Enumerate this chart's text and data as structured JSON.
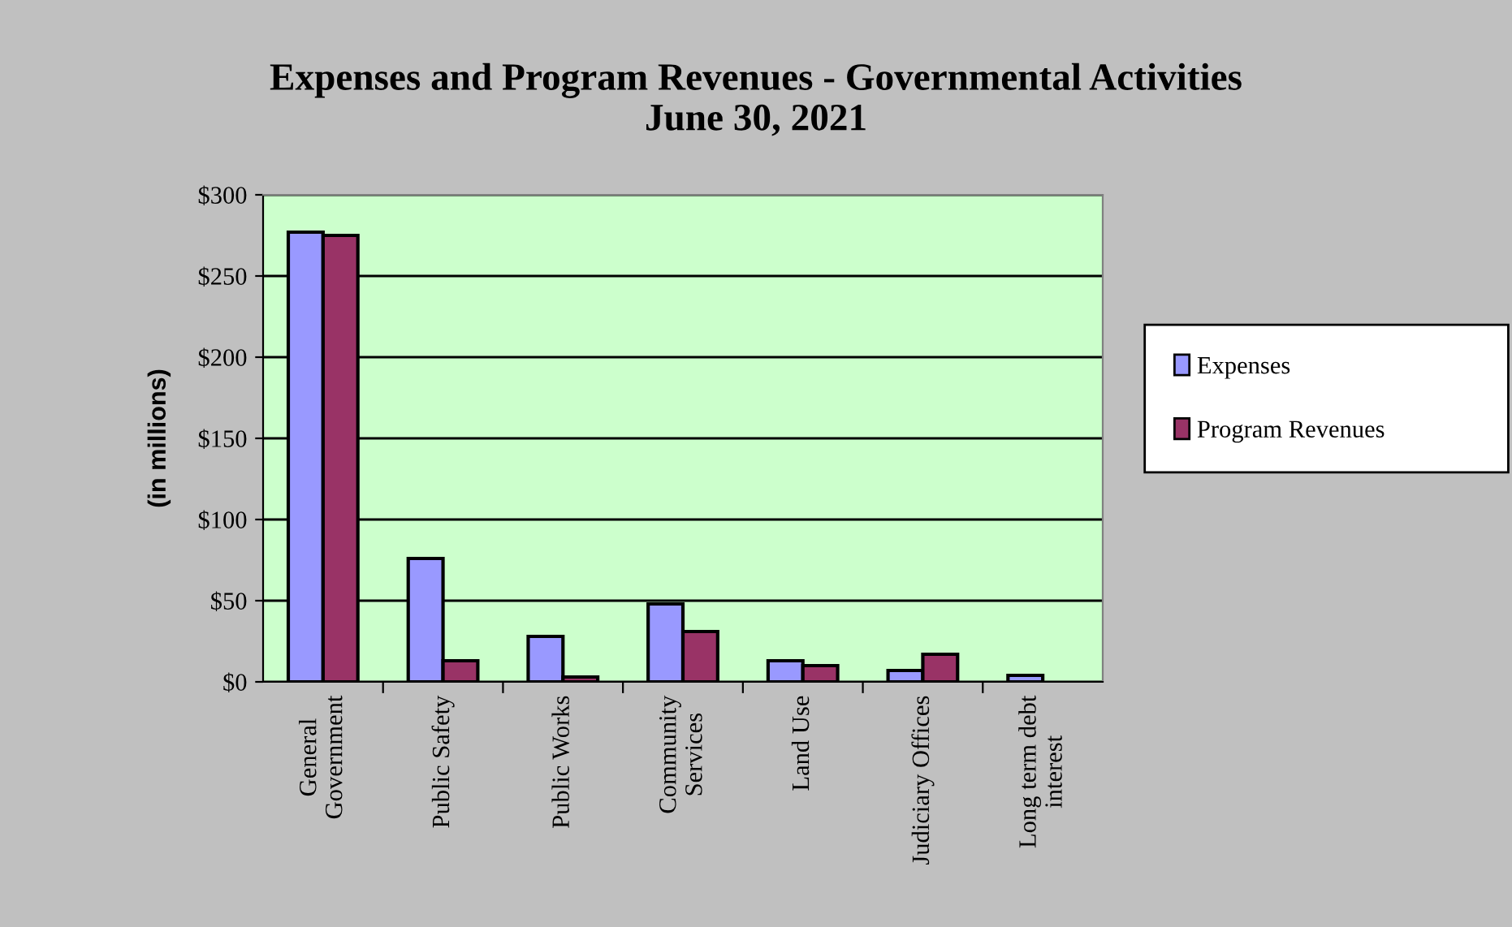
{
  "chart_data": {
    "type": "bar",
    "title": "Expenses and Program Revenues - Governmental Activities\nJune 30, 2021",
    "ylabel": "(in millions)",
    "categories": [
      "General\nGovernment",
      "Public Safety",
      "Public Works",
      "Community\nServices",
      "Land Use",
      "Judiciary Offices",
      "Long term debt\ninterest"
    ],
    "series": [
      {
        "name": "Expenses",
        "color": "#9999ff",
        "values": [
          277,
          76,
          28,
          48,
          13,
          7,
          4
        ]
      },
      {
        "name": "Program Revenues",
        "color": "#993366",
        "values": [
          275,
          13,
          3,
          31,
          10,
          17,
          null
        ]
      }
    ],
    "ylim": [
      0,
      300
    ],
    "yticks": [
      {
        "value": 0,
        "label": "$0"
      },
      {
        "value": 50,
        "label": "$50"
      },
      {
        "value": 100,
        "label": "$100"
      },
      {
        "value": 150,
        "label": "$150"
      },
      {
        "value": 200,
        "label": "$200"
      },
      {
        "value": 250,
        "label": "$250"
      },
      {
        "value": 300,
        "label": "$300"
      }
    ],
    "grid": "y",
    "legend": "right"
  }
}
